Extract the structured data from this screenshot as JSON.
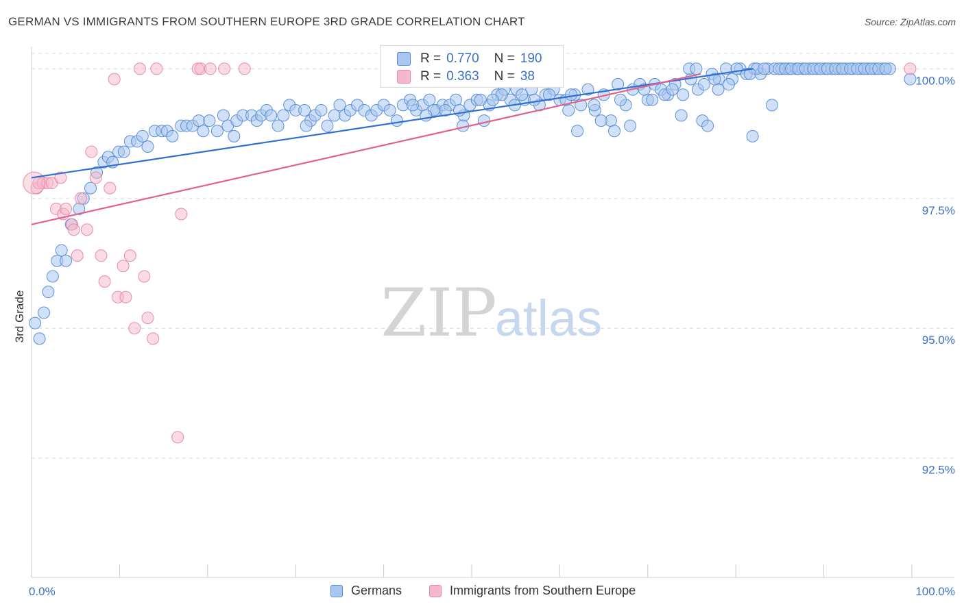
{
  "title": "GERMAN VS IMMIGRANTS FROM SOUTHERN EUROPE 3RD GRADE CORRELATION CHART",
  "source": "Source: ZipAtlas.com",
  "watermark": {
    "zip": "ZIP",
    "atlas": "atlas"
  },
  "colors": {
    "blue_fill": "#a9c6ee",
    "blue_stroke": "#5b8fd6",
    "blue_line": "#2f6fd0",
    "pink_fill": "#f5b8ca",
    "pink_stroke": "#e98aa8",
    "pink_line": "#e0618c",
    "tick_label": "#3a6fc4",
    "grid": "#d9d9d9"
  },
  "legend_box": {
    "rows": [
      {
        "r_label": "R =",
        "r_value": "0.770",
        "n_label": "N =",
        "n_value": "190"
      },
      {
        "r_label": "R =",
        "r_value": "0.363",
        "n_label": "N =",
        "n_value": "38"
      }
    ]
  },
  "legend": [
    "Germans",
    "Immigrants from Southern Europe"
  ],
  "chart_data": {
    "type": "scatter",
    "ylabel": "3rd Grade",
    "xlim": [
      0,
      100
    ],
    "ylim": [
      90.2,
      100.4
    ],
    "x_tick_labels": [
      "0.0%",
      "100.0%"
    ],
    "y_ticks": [
      {
        "value": 100.0,
        "label": "100.0%"
      },
      {
        "value": 97.5,
        "label": "97.5%"
      },
      {
        "value": 95.0,
        "label": "95.0%"
      },
      {
        "value": 92.5,
        "label": "92.5%"
      }
    ],
    "grid": true,
    "series": [
      {
        "name": "Germans",
        "trend": [
          [
            0,
            97.9
          ],
          [
            82,
            100.0
          ]
        ],
        "points": [
          [
            0.4,
            95.1
          ],
          [
            0.9,
            94.8
          ],
          [
            1.4,
            95.3
          ],
          [
            1.9,
            95.7
          ],
          [
            2.4,
            96.0
          ],
          [
            2.9,
            96.3
          ],
          [
            3.4,
            96.5
          ],
          [
            3.9,
            96.3
          ],
          [
            4.5,
            97.0
          ],
          [
            5.4,
            97.3
          ],
          [
            5.9,
            97.5
          ],
          [
            6.7,
            97.7
          ],
          [
            7.4,
            98.0
          ],
          [
            8.2,
            98.2
          ],
          [
            8.7,
            98.3
          ],
          [
            9.2,
            98.2
          ],
          [
            9.9,
            98.4
          ],
          [
            10.5,
            98.4
          ],
          [
            11.2,
            98.6
          ],
          [
            12.0,
            98.6
          ],
          [
            12.6,
            98.7
          ],
          [
            13.2,
            98.5
          ],
          [
            14.0,
            98.8
          ],
          [
            14.8,
            98.8
          ],
          [
            15.4,
            98.8
          ],
          [
            16.0,
            98.7
          ],
          [
            17.0,
            98.9
          ],
          [
            17.6,
            98.9
          ],
          [
            18.3,
            98.9
          ],
          [
            19.0,
            99.0
          ],
          [
            19.5,
            98.8
          ],
          [
            20.2,
            99.0
          ],
          [
            21.1,
            98.8
          ],
          [
            21.8,
            99.1
          ],
          [
            22.3,
            98.9
          ],
          [
            23.3,
            99.0
          ],
          [
            24.0,
            99.1
          ],
          [
            25.0,
            99.1
          ],
          [
            25.6,
            99.0
          ],
          [
            26.1,
            99.1
          ],
          [
            26.7,
            99.2
          ],
          [
            27.2,
            99.1
          ],
          [
            28.0,
            98.9
          ],
          [
            28.6,
            99.1
          ],
          [
            29.3,
            99.3
          ],
          [
            30.0,
            99.2
          ],
          [
            31.0,
            99.2
          ],
          [
            31.7,
            99.0
          ],
          [
            32.2,
            99.1
          ],
          [
            32.9,
            99.2
          ],
          [
            33.6,
            98.9
          ],
          [
            34.4,
            99.1
          ],
          [
            35.0,
            99.3
          ],
          [
            35.6,
            99.1
          ],
          [
            36.2,
            99.2
          ],
          [
            37.0,
            99.3
          ],
          [
            37.8,
            99.2
          ],
          [
            38.6,
            99.1
          ],
          [
            39.2,
            99.2
          ],
          [
            40.0,
            99.3
          ],
          [
            40.7,
            99.2
          ],
          [
            41.5,
            99.0
          ],
          [
            42.2,
            99.3
          ],
          [
            43.0,
            99.4
          ],
          [
            43.7,
            99.2
          ],
          [
            44.4,
            99.3
          ],
          [
            45.2,
            99.4
          ],
          [
            46.0,
            99.2
          ],
          [
            46.7,
            99.3
          ],
          [
            47.5,
            99.3
          ],
          [
            48.2,
            99.4
          ],
          [
            49.1,
            99.1
          ],
          [
            49.8,
            99.3
          ],
          [
            50.6,
            99.4
          ],
          [
            51.4,
            99.0
          ],
          [
            52.0,
            99.3
          ],
          [
            52.9,
            99.5
          ],
          [
            53.7,
            99.6
          ],
          [
            54.4,
            99.4
          ],
          [
            55.1,
            99.6
          ],
          [
            56.0,
            99.4
          ],
          [
            56.8,
            99.6
          ],
          [
            57.7,
            99.3
          ],
          [
            58.4,
            99.5
          ],
          [
            59.3,
            99.6
          ],
          [
            60.0,
            99.4
          ],
          [
            61.0,
            99.2
          ],
          [
            61.7,
            99.5
          ],
          [
            62.4,
            99.3
          ],
          [
            63.2,
            99.6
          ],
          [
            64.0,
            99.2
          ],
          [
            65.0,
            99.5
          ],
          [
            65.8,
            99.0
          ],
          [
            66.6,
            99.7
          ],
          [
            67.5,
            99.3
          ],
          [
            68.3,
            99.6
          ],
          [
            69.1,
            99.7
          ],
          [
            70.0,
            99.4
          ],
          [
            70.8,
            99.7
          ],
          [
            71.5,
            99.6
          ],
          [
            72.3,
            99.5
          ],
          [
            73.1,
            99.7
          ],
          [
            74.0,
            99.5
          ],
          [
            74.9,
            99.8
          ],
          [
            75.7,
            99.6
          ],
          [
            76.4,
            99.7
          ],
          [
            77.3,
            99.9
          ],
          [
            78.1,
            99.8
          ],
          [
            78.9,
            100.0
          ],
          [
            79.6,
            99.8
          ],
          [
            80.5,
            100.0
          ],
          [
            81.2,
            99.9
          ],
          [
            82.1,
            100.0
          ],
          [
            82.8,
            99.9
          ],
          [
            83.6,
            100.0
          ],
          [
            84.4,
            100.0
          ],
          [
            85.2,
            100.0
          ],
          [
            86.0,
            100.0
          ],
          [
            86.9,
            100.0
          ],
          [
            87.6,
            100.0
          ],
          [
            88.4,
            100.0
          ],
          [
            89.2,
            100.0
          ],
          [
            90.1,
            100.0
          ],
          [
            90.9,
            100.0
          ],
          [
            91.7,
            100.0
          ],
          [
            92.5,
            100.0
          ],
          [
            93.3,
            100.0
          ],
          [
            94.2,
            100.0
          ],
          [
            95.0,
            100.0
          ],
          [
            95.8,
            100.0
          ],
          [
            96.7,
            100.0
          ],
          [
            97.5,
            100.0
          ],
          [
            23.0,
            98.7
          ],
          [
            31.2,
            98.9
          ],
          [
            49.0,
            98.9
          ],
          [
            54.9,
            99.3
          ],
          [
            62.0,
            98.8
          ],
          [
            63.9,
            99.3
          ],
          [
            64.7,
            99.0
          ],
          [
            66.2,
            98.8
          ],
          [
            66.9,
            99.4
          ],
          [
            68.0,
            98.9
          ],
          [
            70.5,
            99.4
          ],
          [
            73.8,
            99.1
          ],
          [
            76.2,
            99.0
          ],
          [
            76.8,
            98.9
          ],
          [
            78.0,
            99.6
          ],
          [
            79.2,
            99.7
          ],
          [
            82.4,
            100.0
          ],
          [
            84.1,
            99.3
          ],
          [
            84.9,
            100.0
          ],
          [
            85.6,
            100.0
          ],
          [
            86.3,
            100.0
          ],
          [
            87.1,
            100.0
          ],
          [
            87.9,
            100.0
          ],
          [
            88.8,
            100.0
          ],
          [
            89.6,
            100.0
          ],
          [
            90.4,
            100.0
          ],
          [
            91.3,
            100.0
          ],
          [
            92.1,
            100.0
          ],
          [
            93.0,
            100.0
          ],
          [
            93.8,
            100.0
          ],
          [
            94.6,
            100.0
          ],
          [
            95.4,
            100.0
          ],
          [
            96.2,
            100.0
          ],
          [
            97.0,
            100.0
          ],
          [
            81.9,
            98.7
          ],
          [
            99.8,
            99.8
          ],
          [
            74.7,
            100.0
          ],
          [
            75.5,
            100.0
          ],
          [
            77.6,
            99.8
          ],
          [
            80.1,
            100.0
          ],
          [
            81.6,
            99.9
          ],
          [
            83.2,
            100.0
          ],
          [
            51.0,
            99.4
          ],
          [
            53.4,
            99.5
          ],
          [
            58.8,
            99.5
          ],
          [
            60.7,
            99.4
          ],
          [
            71.9,
            99.5
          ],
          [
            72.8,
            99.6
          ],
          [
            69.6,
            99.6
          ],
          [
            61.3,
            99.5
          ],
          [
            57.1,
            99.4
          ],
          [
            55.7,
            99.5
          ],
          [
            52.4,
            99.4
          ],
          [
            48.6,
            99.2
          ],
          [
            47.0,
            99.2
          ],
          [
            45.7,
            99.2
          ],
          [
            44.8,
            99.1
          ],
          [
            43.3,
            99.3
          ]
        ]
      },
      {
        "name": "Immigrants from Southern Europe",
        "trend": [
          [
            0,
            97.0
          ],
          [
            76,
            99.9
          ]
        ],
        "points": [
          [
            0.6,
            97.7
          ],
          [
            0.8,
            97.8
          ],
          [
            1.3,
            97.8
          ],
          [
            1.8,
            97.8
          ],
          [
            2.3,
            97.8
          ],
          [
            2.8,
            97.3
          ],
          [
            3.3,
            97.9
          ],
          [
            3.6,
            97.2
          ],
          [
            3.9,
            97.3
          ],
          [
            4.6,
            97.0
          ],
          [
            4.8,
            96.9
          ],
          [
            5.2,
            96.4
          ],
          [
            5.6,
            97.5
          ],
          [
            6.3,
            96.9
          ],
          [
            6.8,
            98.4
          ],
          [
            7.3,
            97.9
          ],
          [
            7.9,
            96.4
          ],
          [
            8.3,
            95.9
          ],
          [
            8.9,
            97.7
          ],
          [
            9.4,
            99.8
          ],
          [
            9.8,
            95.6
          ],
          [
            10.4,
            96.2
          ],
          [
            10.7,
            95.6
          ],
          [
            11.2,
            96.4
          ],
          [
            11.7,
            95.0
          ],
          [
            12.3,
            100.0
          ],
          [
            12.8,
            96.0
          ],
          [
            13.2,
            95.2
          ],
          [
            13.8,
            94.8
          ],
          [
            14.2,
            100.0
          ],
          [
            16.6,
            92.9
          ],
          [
            17.0,
            97.2
          ],
          [
            18.9,
            100.0
          ],
          [
            19.2,
            100.0
          ],
          [
            20.3,
            100.0
          ],
          [
            21.9,
            100.0
          ],
          [
            24.2,
            100.0
          ],
          [
            99.8,
            100.0
          ]
        ]
      }
    ]
  }
}
